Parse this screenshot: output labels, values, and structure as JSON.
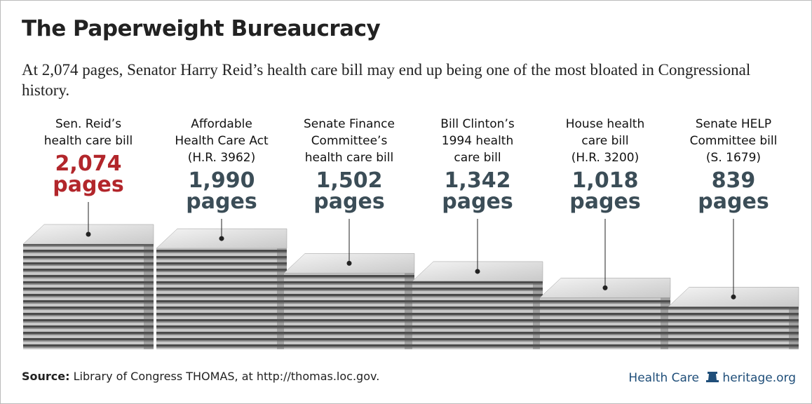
{
  "chart_data": {
    "type": "bar",
    "title": "The Paperweight Bureaucracy",
    "subtitle": "At 2,074 pages, Senator Harry Reid’s health care bill may end up being one of the most bloated in Congressional history.",
    "categories": [
      "Sen. Reid’s\nhealth care bill",
      "Affordable\nHealth Care Act\n(H.R. 3962)",
      "Senate Finance\nCommittee’s\nhealth care bill",
      "Bill Clinton’s\n1994 health\ncare bill",
      "House health\ncare bill\n(H.R. 3200)",
      "Senate HELP\nCommittee bill\n(S. 1679)"
    ],
    "values": [
      2074,
      1990,
      1502,
      1342,
      1018,
      839
    ],
    "value_labels": [
      "2,074",
      "1,990",
      "1,502",
      "1,342",
      "1,018",
      "839"
    ],
    "unit_label": "pages",
    "label_colors": [
      "#b2262b",
      "#3b4d57",
      "#3b4d57",
      "#3b4d57",
      "#3b4d57",
      "#3b4d57"
    ],
    "source_label": "Source:",
    "source": "Library of Congress THOMAS, at http://thomas.loc.gov.",
    "topic": "Health Care",
    "site": "heritage.org"
  }
}
